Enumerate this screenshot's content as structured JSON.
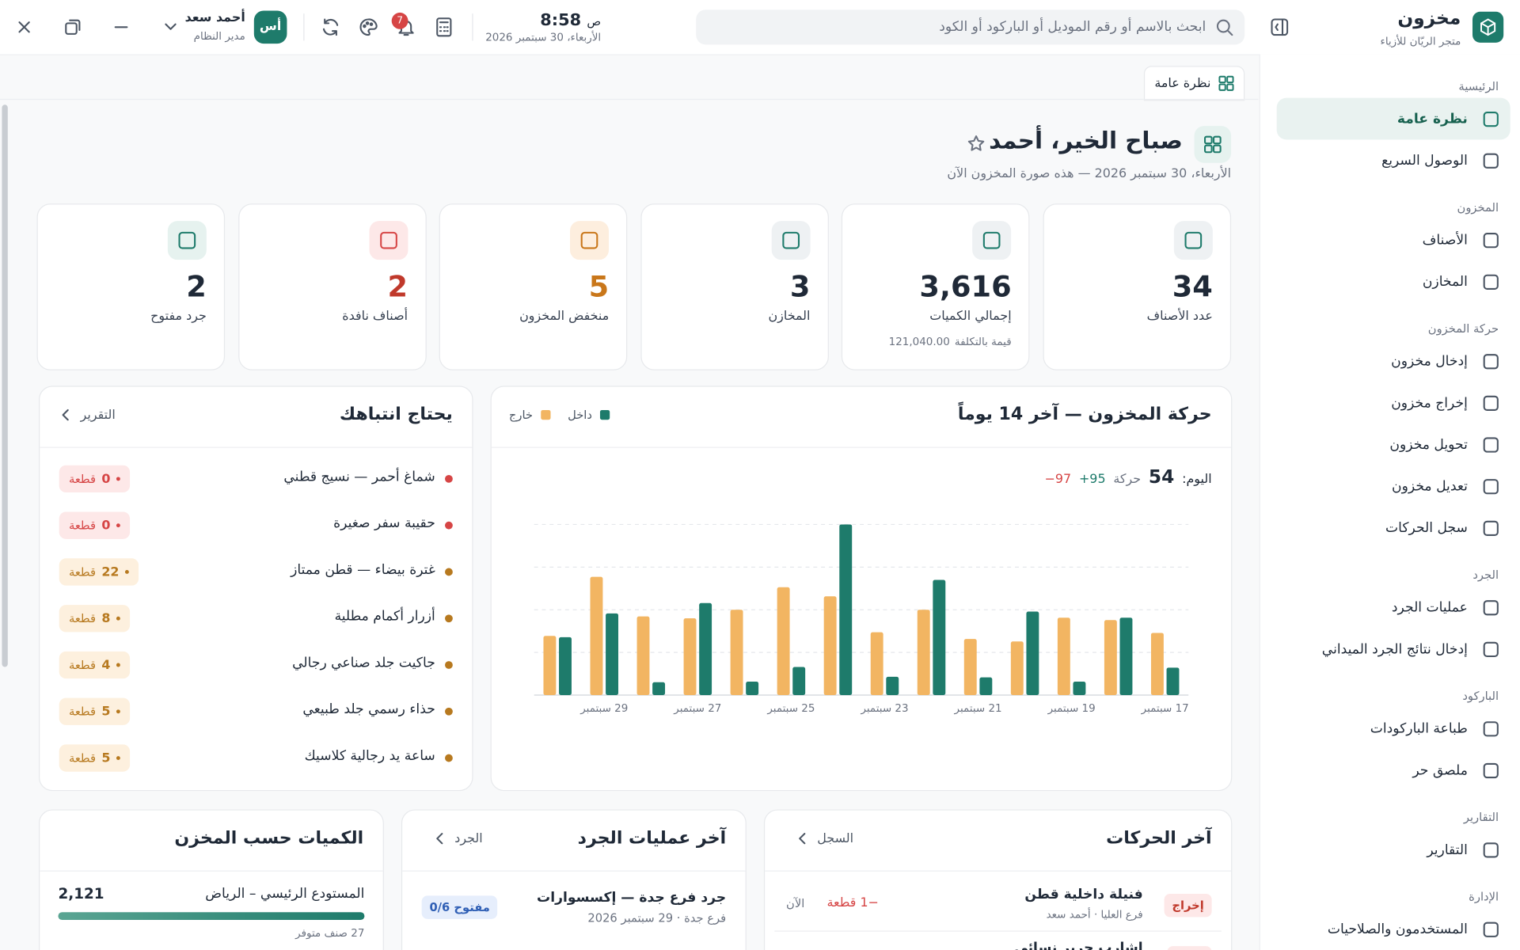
{
  "app": {
    "name": "مخزون",
    "store": "متجر الريّان للأزياء"
  },
  "topbar": {
    "search_placeholder": "ابحث بالاسم أو رقم الموديل أو الباركود أو الكود",
    "time": "8:58",
    "period": "ص",
    "date": "الأربعاء، 30 سبتمبر 2026",
    "notifications": "7",
    "user": {
      "initials": "أس",
      "name": "أحمد سعد",
      "role": "مدير النظام"
    }
  },
  "sidebar": {
    "sections": [
      {
        "title": "الرئيسية",
        "items": [
          "نظرة عامة",
          "الوصول السريع"
        ]
      },
      {
        "title": "المخزون",
        "items": [
          "الأصناف",
          "المخازن"
        ]
      },
      {
        "title": "حركة المخزون",
        "items": [
          "إدخال مخزون",
          "إخراج مخزون",
          "تحويل مخزون",
          "تعديل مخزون",
          "سجل الحركات"
        ]
      },
      {
        "title": "الجرد",
        "items": [
          "عمليات الجرد",
          "إدخال نتائج الجرد الميداني"
        ]
      },
      {
        "title": "الباركود",
        "items": [
          "طباعة الباركودات",
          "ملصق حر"
        ]
      },
      {
        "title": "التقارير",
        "items": [
          "التقارير"
        ]
      },
      {
        "title": "الإدارة",
        "items": [
          "المستخدمون والصلاحيات"
        ]
      }
    ]
  },
  "tab": "نظرة عامة",
  "header": {
    "title": "صباح الخير، أحمد",
    "subtitle": "الأربعاء، 30 سبتمبر 2026 — هذه صورة المخزون الآن"
  },
  "kpis": [
    {
      "value": "34",
      "label": "عدد الأصناف"
    },
    {
      "value": "3,616",
      "label": "إجمالي الكميات",
      "note_label": "قيمة بالتكلفة",
      "note_value": "121,040.00"
    },
    {
      "value": "3",
      "label": "المخازن"
    },
    {
      "value": "5",
      "label": "منخفض المخزون"
    },
    {
      "value": "2",
      "label": "أصناف نافدة"
    },
    {
      "value": "2",
      "label": "جرد مفتوح"
    }
  ],
  "chart_data": {
    "type": "bar",
    "title": "حركة المخزون — آخر 14 يوماً",
    "categories": [
      "17 سبتمبر",
      null,
      "19 سبتمبر",
      null,
      "21 سبتمبر",
      null,
      "23 سبتمبر",
      null,
      "25 سبتمبر",
      null,
      "27 سبتمبر",
      null,
      "29 سبتمبر",
      null
    ],
    "series": [
      {
        "name": "داخل",
        "color": "#1e7b6b",
        "values": [
          45,
          127,
          22,
          137,
          29,
          189,
          30,
          280,
          46,
          22,
          151,
          21,
          134,
          95
        ]
      },
      {
        "name": "خارج",
        "color": "#f2b562",
        "values": [
          102,
          123,
          127,
          88,
          92,
          140,
          103,
          162,
          177,
          140,
          126,
          129,
          194,
          97
        ]
      }
    ],
    "ylim": [
      0,
      280
    ],
    "yticks": [
      0,
      70,
      140,
      210,
      280
    ],
    "grid": true,
    "today": {
      "label": "اليوم:",
      "count": "54",
      "count_label": "حركة",
      "in": "+95",
      "out": "−97"
    }
  },
  "attention": {
    "title": "يحتاج انتباهك",
    "link": "التقرير",
    "items": [
      {
        "name": "شماغ أحمر — نسيج قطني",
        "qty": 0,
        "unit": "قطعة"
      },
      {
        "name": "حقيبة سفر صغيرة",
        "qty": 0,
        "unit": "قطعة"
      },
      {
        "name": "غترة بيضاء — قطن ممتاز",
        "qty": 22,
        "unit": "قطعة"
      },
      {
        "name": "أزرار أكمام مطلية",
        "qty": 8,
        "unit": "قطعة"
      },
      {
        "name": "جاكيت جلد صناعي رجالي",
        "qty": 4,
        "unit": "قطعة"
      },
      {
        "name": "حذاء رسمي جلد طبيعي",
        "qty": 5,
        "unit": "قطعة"
      },
      {
        "name": "ساعة يد رجالية كلاسيك",
        "qty": 5,
        "unit": "قطعة"
      }
    ]
  },
  "recent_moves": {
    "title": "آخر الحركات",
    "link": "السجل",
    "rows": [
      {
        "type": "إخراج",
        "item": "فنيلة داخلية قطن",
        "meta": "فرع العليا · أحمد سعد",
        "qty": "−1 قطعة",
        "time": "الآن"
      },
      {
        "item": "إشارب حرير نسائي"
      }
    ]
  },
  "recent_counts": {
    "title": "آخر عمليات الجرد",
    "link": "الجرد",
    "rows": [
      {
        "name": "جرد فرع جدة — إكسسوارات",
        "meta": "فرع جدة · 29 سبتمبر 2026",
        "status": "مفتوح 0/6"
      }
    ]
  },
  "warehouses": {
    "title": "الكميات حسب المخزن",
    "rows": [
      {
        "name": "المستودع الرئيسي – الرياض",
        "qty": "2,121",
        "note": "27 صنف متوفر"
      }
    ]
  }
}
